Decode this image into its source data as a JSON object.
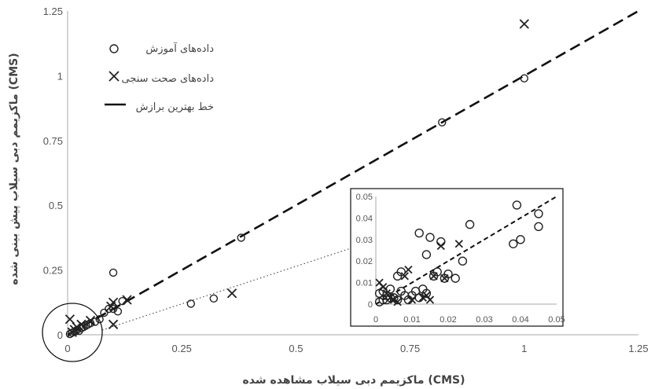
{
  "chart_data": {
    "type": "scatter",
    "title": "",
    "xlabel": "ماکزیمم دبی سیلاب مشاهده شده (CMS)",
    "ylabel": "ماکزیمم دبی سیلاب پیش بینی شده (CMS)",
    "xlim": [
      0,
      1.25
    ],
    "ylim": [
      0,
      1.25
    ],
    "xticks": [
      "0",
      "0.25",
      "0.5",
      "0.75",
      "1",
      "1.25"
    ],
    "yticks": [
      "0",
      "0.25",
      "0.5",
      "0.75",
      "1",
      "1.25"
    ],
    "grid": false,
    "legend_position": "top-left",
    "legend": [
      "داده‌های آموزش",
      "داده‌های صحت سنجی",
      "خط بهترین برازش"
    ],
    "series": [
      {
        "name": "داده‌های آموزش",
        "marker": "circle",
        "points": [
          [
            0.005,
            0.003
          ],
          [
            0.01,
            0.008
          ],
          [
            0.015,
            0.012
          ],
          [
            0.02,
            0.018
          ],
          [
            0.025,
            0.015
          ],
          [
            0.03,
            0.025
          ],
          [
            0.035,
            0.03
          ],
          [
            0.04,
            0.035
          ],
          [
            0.045,
            0.04
          ],
          [
            0.05,
            0.045
          ],
          [
            0.06,
            0.05
          ],
          [
            0.07,
            0.06
          ],
          [
            0.08,
            0.085
          ],
          [
            0.09,
            0.1
          ],
          [
            0.1,
            0.1
          ],
          [
            0.11,
            0.09
          ],
          [
            0.12,
            0.13
          ],
          [
            0.1,
            0.24
          ],
          [
            0.27,
            0.12
          ],
          [
            0.32,
            0.14
          ],
          [
            0.38,
            0.375
          ],
          [
            0.82,
            0.82
          ],
          [
            1.0,
            0.99
          ]
        ]
      },
      {
        "name": "داده‌های صحت سنجی",
        "marker": "x",
        "points": [
          [
            0.005,
            0.06
          ],
          [
            0.01,
            0.01
          ],
          [
            0.015,
            0.02
          ],
          [
            0.02,
            0.03
          ],
          [
            0.03,
            0.04
          ],
          [
            0.05,
            0.055
          ],
          [
            0.095,
            0.11
          ],
          [
            0.1,
            0.125
          ],
          [
            0.1,
            0.04
          ],
          [
            0.13,
            0.135
          ],
          [
            0.36,
            0.16
          ],
          [
            1.0,
            1.2
          ]
        ]
      }
    ],
    "fit_line": {
      "name": "خط بهترین برازش",
      "x": [
        0,
        1.25
      ],
      "y": [
        0,
        1.25
      ]
    },
    "inset": {
      "xlim": [
        0,
        0.05
      ],
      "ylim": [
        0,
        0.05
      ],
      "xticks": [
        "0",
        "0.01",
        "0.02",
        "0.03",
        "0.04",
        "0.05"
      ],
      "yticks": [
        "0",
        "0.01",
        "0.02",
        "0.03",
        "0.04",
        "0.05"
      ],
      "training": [
        [
          0.001,
          0.001
        ],
        [
          0.002,
          0.002
        ],
        [
          0.003,
          0.004
        ],
        [
          0.004,
          0.003
        ],
        [
          0.001,
          0.005
        ],
        [
          0.002,
          0.006
        ],
        [
          0.003,
          0.002
        ],
        [
          0.005,
          0.003
        ],
        [
          0.004,
          0.007
        ],
        [
          0.006,
          0.002
        ],
        [
          0.007,
          0.006
        ],
        [
          0.008,
          0.004
        ],
        [
          0.009,
          0.002
        ],
        [
          0.006,
          0.013
        ],
        [
          0.007,
          0.015
        ],
        [
          0.01,
          0.004
        ],
        [
          0.011,
          0.006
        ],
        [
          0.012,
          0.003
        ],
        [
          0.013,
          0.007
        ],
        [
          0.014,
          0.005
        ],
        [
          0.012,
          0.033
        ],
        [
          0.015,
          0.031
        ],
        [
          0.014,
          0.023
        ],
        [
          0.016,
          0.013
        ],
        [
          0.017,
          0.015
        ],
        [
          0.018,
          0.029
        ],
        [
          0.019,
          0.012
        ],
        [
          0.02,
          0.014
        ],
        [
          0.022,
          0.012
        ],
        [
          0.024,
          0.02
        ],
        [
          0.026,
          0.037
        ],
        [
          0.038,
          0.028
        ],
        [
          0.039,
          0.046
        ],
        [
          0.04,
          0.03
        ],
        [
          0.045,
          0.042
        ],
        [
          0.045,
          0.036
        ]
      ],
      "validation": [
        [
          0.001,
          0.01
        ],
        [
          0.002,
          0.008
        ],
        [
          0.003,
          0.005
        ],
        [
          0.004,
          0.003
        ],
        [
          0.005,
          0.002
        ],
        [
          0.006,
          0.001
        ],
        [
          0.008,
          0.013
        ],
        [
          0.009,
          0.016
        ],
        [
          0.01,
          0.002
        ],
        [
          0.013,
          0.003
        ],
        [
          0.014,
          0.004
        ],
        [
          0.015,
          0.002
        ],
        [
          0.016,
          0.013
        ],
        [
          0.018,
          0.027
        ],
        [
          0.019,
          0.012
        ],
        [
          0.023,
          0.028
        ]
      ]
    }
  }
}
